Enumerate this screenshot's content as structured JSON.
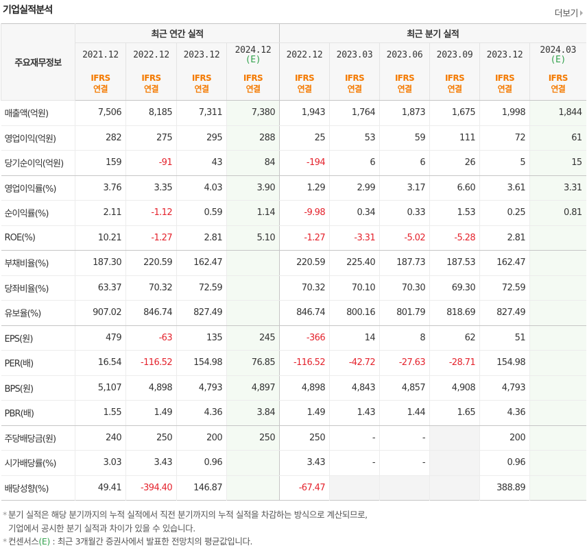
{
  "title": "기업실적분석",
  "more_label": "더보기",
  "header": {
    "row_label": "주요재무정보",
    "annual_group": "최근 연간 실적",
    "quarter_group": "최근 분기 실적",
    "annual_periods": [
      {
        "period": "2021.12",
        "est": ""
      },
      {
        "period": "2022.12",
        "est": ""
      },
      {
        "period": "2023.12",
        "est": ""
      },
      {
        "period": "2024.12",
        "est": "(E)"
      }
    ],
    "quarter_periods": [
      {
        "period": "2022.12",
        "est": ""
      },
      {
        "period": "2023.03",
        "est": ""
      },
      {
        "period": "2023.06",
        "est": ""
      },
      {
        "period": "2023.09",
        "est": ""
      },
      {
        "period": "2023.12",
        "est": ""
      },
      {
        "period": "2024.03",
        "est": "(E)"
      }
    ],
    "basis_line1": "IFRS",
    "basis_line2": "연결"
  },
  "rows": [
    {
      "label": "매출액(억원)",
      "values": [
        "7,506",
        "8,185",
        "7,311",
        "7,380",
        "1,943",
        "1,764",
        "1,873",
        "1,675",
        "1,998",
        "1,844"
      ]
    },
    {
      "label": "영업이익(억원)",
      "values": [
        "282",
        "275",
        "295",
        "288",
        "25",
        "53",
        "59",
        "111",
        "72",
        "61"
      ]
    },
    {
      "label": "당기순이익(억원)",
      "values": [
        "159",
        "-91",
        "43",
        "84",
        "-194",
        "6",
        "6",
        "26",
        "5",
        "15"
      ]
    },
    {
      "label": "영업이익률(%)",
      "values": [
        "3.76",
        "3.35",
        "4.03",
        "3.90",
        "1.29",
        "2.99",
        "3.17",
        "6.60",
        "3.61",
        "3.31"
      ]
    },
    {
      "label": "순이익률(%)",
      "values": [
        "2.11",
        "-1.12",
        "0.59",
        "1.14",
        "-9.98",
        "0.34",
        "0.33",
        "1.53",
        "0.25",
        "0.81"
      ]
    },
    {
      "label": "ROE(%)",
      "values": [
        "10.21",
        "-1.27",
        "2.81",
        "5.10",
        "-1.27",
        "-3.31",
        "-5.02",
        "-5.28",
        "2.81",
        ""
      ]
    },
    {
      "label": "부채비율(%)",
      "values": [
        "187.30",
        "220.59",
        "162.47",
        "",
        "220.59",
        "225.40",
        "187.73",
        "187.53",
        "162.47",
        ""
      ]
    },
    {
      "label": "당좌비율(%)",
      "values": [
        "63.37",
        "70.32",
        "72.59",
        "",
        "70.32",
        "70.10",
        "70.30",
        "69.30",
        "72.59",
        ""
      ]
    },
    {
      "label": "유보율(%)",
      "values": [
        "907.02",
        "846.74",
        "827.49",
        "",
        "846.74",
        "800.16",
        "801.79",
        "818.69",
        "827.49",
        ""
      ]
    },
    {
      "label": "EPS(원)",
      "values": [
        "479",
        "-63",
        "135",
        "245",
        "-366",
        "14",
        "8",
        "62",
        "51",
        ""
      ]
    },
    {
      "label": "PER(배)",
      "values": [
        "16.54",
        "-116.52",
        "154.98",
        "76.85",
        "-116.52",
        "-42.72",
        "-27.63",
        "-28.71",
        "154.98",
        ""
      ]
    },
    {
      "label": "BPS(원)",
      "values": [
        "5,107",
        "4,898",
        "4,793",
        "4,897",
        "4,898",
        "4,843",
        "4,857",
        "4,908",
        "4,793",
        ""
      ]
    },
    {
      "label": "PBR(배)",
      "values": [
        "1.55",
        "1.49",
        "4.36",
        "3.84",
        "1.49",
        "1.43",
        "1.44",
        "1.65",
        "4.36",
        ""
      ]
    },
    {
      "label": "주당배당금(원)",
      "values": [
        "240",
        "250",
        "200",
        "250",
        "250",
        "-",
        "-",
        "",
        "200",
        ""
      ]
    },
    {
      "label": "시가배당률(%)",
      "values": [
        "3.03",
        "3.43",
        "0.96",
        "",
        "3.43",
        "-",
        "-",
        "",
        "0.96",
        ""
      ]
    },
    {
      "label": "배당성향(%)",
      "values": [
        "49.41",
        "-394.40",
        "146.87",
        "",
        "-67.47",
        "",
        "",
        "",
        "388.89",
        ""
      ]
    }
  ],
  "notes": {
    "note1_line1": "분기 실적은 해당 분기까지의 누적 실적에서 직전 분기까지의 누적 실적을 차감하는 방식으로 계산되므로,",
    "note1_line2": "기업에서 공시한 분기 실적과 차이가 있을 수 있습니다.",
    "note2_prefix": "컨센서스",
    "note2_mark": "(E)",
    "note2_text": " : 최근 3개월간 증권사에서 발표한 전망치의 평균값입니다.",
    "bullet": "*"
  },
  "colors": {
    "ifrs_orange": "#f47a00",
    "negative_red": "#e4222c",
    "estimate_green": "#33a24d",
    "estimate_bg": "#f4faf3",
    "header_bg": "#f7f7f7"
  }
}
